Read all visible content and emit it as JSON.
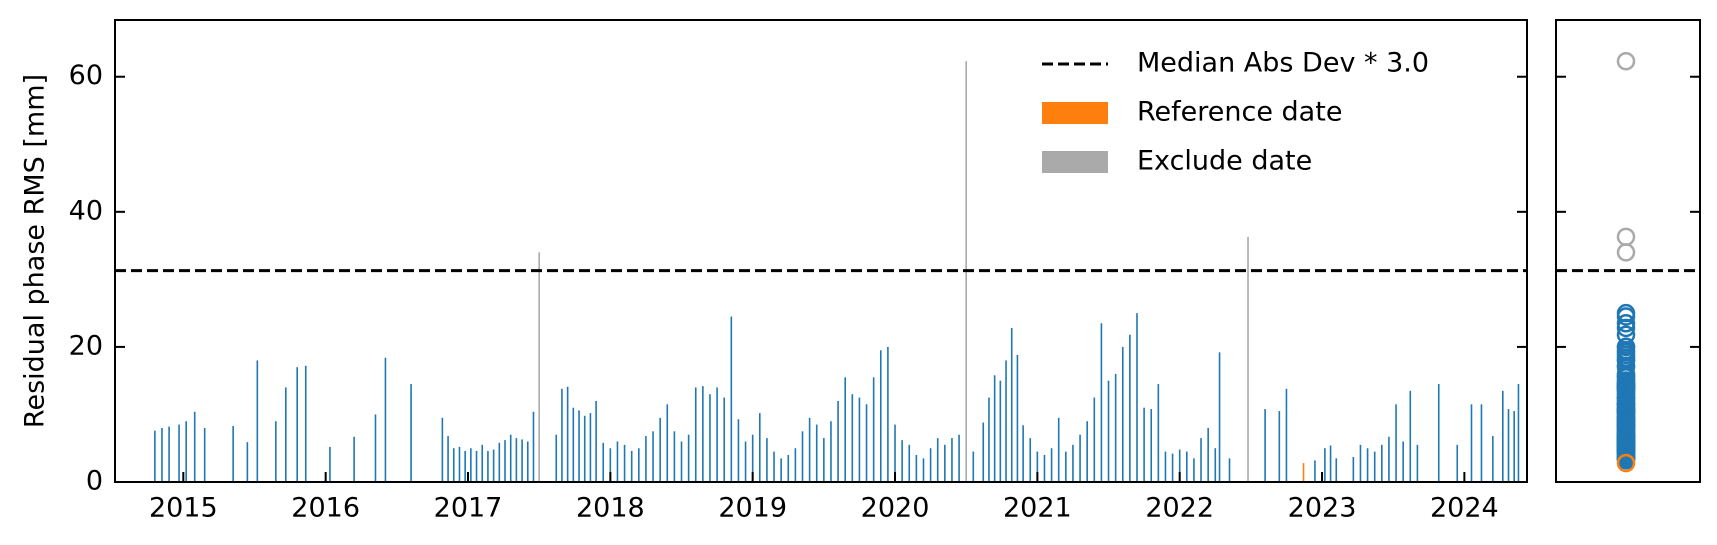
{
  "chart_data": {
    "type": "bar",
    "ylabel": "Residual phase RMS [mm]",
    "xlim": [
      2014.52,
      2024.44
    ],
    "xticks": [
      2015,
      2016,
      2017,
      2018,
      2019,
      2020,
      2021,
      2022,
      2023,
      2024
    ],
    "ylim": [
      0,
      68.4
    ],
    "yticks": [
      0,
      20,
      40,
      60
    ],
    "threshold": {
      "name": "Median Abs Dev * 3.0",
      "value": 31.3,
      "color": "#000000"
    },
    "series": [
      {
        "color": "#1f77b4",
        "x": [
          2014.8,
          2014.85,
          2014.9,
          2014.97,
          2015.02,
          2015.08,
          2015.15,
          2015.35,
          2015.45,
          2015.52,
          2015.65,
          2015.72,
          2015.8,
          2015.86,
          2016.03,
          2016.2,
          2016.35,
          2016.42,
          2016.6,
          2016.82,
          2016.86,
          2016.9,
          2016.94,
          2016.98,
          2017.02,
          2017.06,
          2017.1,
          2017.14,
          2017.18,
          2017.22,
          2017.26,
          2017.3,
          2017.34,
          2017.38,
          2017.42,
          2017.46,
          2017.62,
          2017.66,
          2017.7,
          2017.74,
          2017.78,
          2017.82,
          2017.86,
          2017.9,
          2017.95,
          2018.0,
          2018.05,
          2018.1,
          2018.15,
          2018.2,
          2018.25,
          2018.3,
          2018.35,
          2018.4,
          2018.45,
          2018.5,
          2018.55,
          2018.6,
          2018.65,
          2018.7,
          2018.75,
          2018.8,
          2018.85,
          2018.9,
          2018.95,
          2019.0,
          2019.05,
          2019.1,
          2019.15,
          2019.2,
          2019.25,
          2019.3,
          2019.35,
          2019.4,
          2019.45,
          2019.5,
          2019.55,
          2019.6,
          2019.65,
          2019.7,
          2019.75,
          2019.8,
          2019.85,
          2019.9,
          2019.95,
          2020.0,
          2020.05,
          2020.1,
          2020.15,
          2020.2,
          2020.25,
          2020.3,
          2020.35,
          2020.4,
          2020.45,
          2020.55,
          2020.62,
          2020.66,
          2020.7,
          2020.74,
          2020.78,
          2020.82,
          2020.86,
          2020.9,
          2020.95,
          2021.0,
          2021.05,
          2021.1,
          2021.15,
          2021.2,
          2021.25,
          2021.3,
          2021.35,
          2021.4,
          2021.45,
          2021.5,
          2021.55,
          2021.6,
          2021.65,
          2021.7,
          2021.75,
          2021.8,
          2021.85,
          2021.9,
          2021.95,
          2022.0,
          2022.05,
          2022.1,
          2022.15,
          2022.2,
          2022.25,
          2022.28,
          2022.35,
          2022.6,
          2022.7,
          2022.75,
          2022.95,
          2023.02,
          2023.06,
          2023.1,
          2023.22,
          2023.27,
          2023.32,
          2023.37,
          2023.42,
          2023.47,
          2023.52,
          2023.57,
          2023.62,
          2023.67,
          2023.82,
          2023.95,
          2024.05,
          2024.12,
          2024.2,
          2024.27,
          2024.31,
          2024.35,
          2024.38
        ],
        "values": [
          7.6,
          8,
          8.2,
          8.5,
          9,
          10.4,
          8,
          8.3,
          5.9,
          18,
          9,
          14,
          17,
          17.2,
          5.2,
          6.7,
          10,
          18.4,
          14.5,
          9.5,
          6.8,
          5,
          5.2,
          4.6,
          5,
          4.6,
          5.5,
          4.6,
          4.8,
          5.8,
          6.2,
          7,
          6.5,
          6.3,
          6,
          10.4,
          7,
          13.8,
          14.1,
          11,
          10.6,
          9.8,
          10.2,
          12,
          5.8,
          5,
          6,
          5.5,
          4.6,
          5,
          6.8,
          7.5,
          9.5,
          11.5,
          7.5,
          6,
          7,
          14,
          14.2,
          13,
          14,
          12.5,
          24.5,
          9.3,
          6,
          7,
          10.2,
          6.5,
          4.5,
          3.5,
          4,
          5,
          7.5,
          9.5,
          8.5,
          6.5,
          9,
          12,
          15.5,
          13,
          12.5,
          11.5,
          15.5,
          19.5,
          20,
          8.5,
          6.2,
          5.5,
          4,
          3.5,
          5,
          6.5,
          5.5,
          6.5,
          7,
          4.5,
          8.8,
          12.5,
          15.8,
          15,
          18,
          22.8,
          18.8,
          8.4,
          6.5,
          4.5,
          4,
          5,
          9.5,
          4.5,
          5.5,
          7,
          9,
          12.5,
          23.5,
          15,
          16,
          20,
          21.8,
          25,
          11,
          10.8,
          14.5,
          4.5,
          4.2,
          4.8,
          4.5,
          3.5,
          6.5,
          8,
          5,
          19.2,
          3.5,
          10.8,
          10.5,
          13.8,
          3.2,
          5,
          5.4,
          3.5,
          3.7,
          5.5,
          5,
          4.5,
          5.5,
          6.7,
          11.5,
          6,
          13.5,
          5.5,
          14.5,
          5.5,
          11.5,
          11.5,
          6.8,
          13.5,
          10.8,
          10.5,
          14.5
        ]
      },
      {
        "name": "Reference date",
        "color": "#ff7f0e",
        "x": [
          2022.87
        ],
        "values": [
          2.8
        ]
      },
      {
        "name": "Exclude date",
        "color": "#aaaaaa",
        "x": [
          2017.5,
          2020.5,
          2022.48
        ],
        "values": [
          34,
          62.3,
          36.3
        ]
      }
    ]
  }
}
